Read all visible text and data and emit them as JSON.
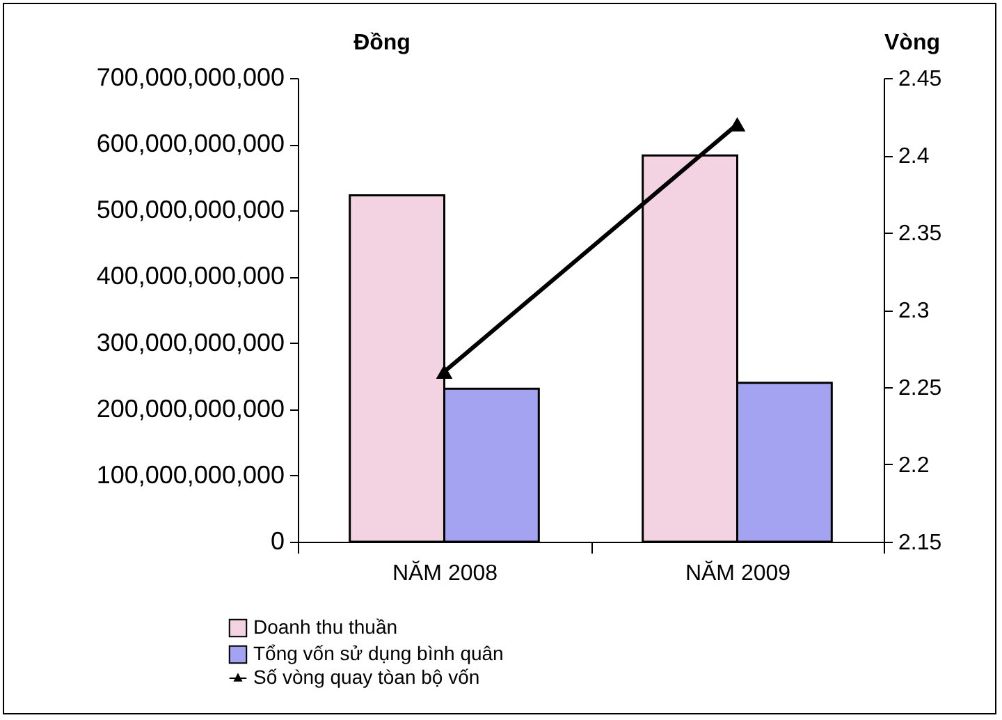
{
  "chart_data": {
    "type": "bar",
    "ylabel": "Đồng",
    "y2label": "Vòng",
    "categories": [
      "NĂM 2008",
      "NĂM 2009"
    ],
    "series": [
      {
        "name": "Doanh thu thuần",
        "color": "#f3d3e1",
        "values": [
          523000000000,
          583000000000
        ]
      },
      {
        "name": "Tổng vốn sử dụng bình quân",
        "color": "#a3a3f2",
        "values": [
          231000000000,
          240000000000
        ]
      },
      {
        "name": "Số vòng quay tòan bộ vốn",
        "type": "line",
        "axis": "y2",
        "color": "#000000",
        "values": [
          2.26,
          2.42
        ]
      }
    ],
    "ylim": [
      0,
      700000000000
    ],
    "yticks": [
      0,
      {
        "value": 100000000000,
        "label": "100,000,000,000"
      },
      {
        "value": 200000000000,
        "label": "200,000,000,000"
      },
      {
        "value": 300000000000,
        "label": "300,000,000,000"
      },
      {
        "value": 400000000000,
        "label": "400,000,000,000"
      },
      {
        "value": 500000000000,
        "label": "500,000,000,000"
      },
      {
        "value": 600000000000,
        "label": "600,000,000,000"
      },
      {
        "value": 700000000000,
        "label": "700,000,000,000"
      }
    ],
    "y2lim": [
      2.15,
      2.45
    ],
    "y2ticks": [
      2.15,
      2.2,
      2.25,
      2.3,
      2.35,
      2.4,
      2.45
    ],
    "legend": "bottom",
    "marker": "triangle",
    "grid": false
  }
}
